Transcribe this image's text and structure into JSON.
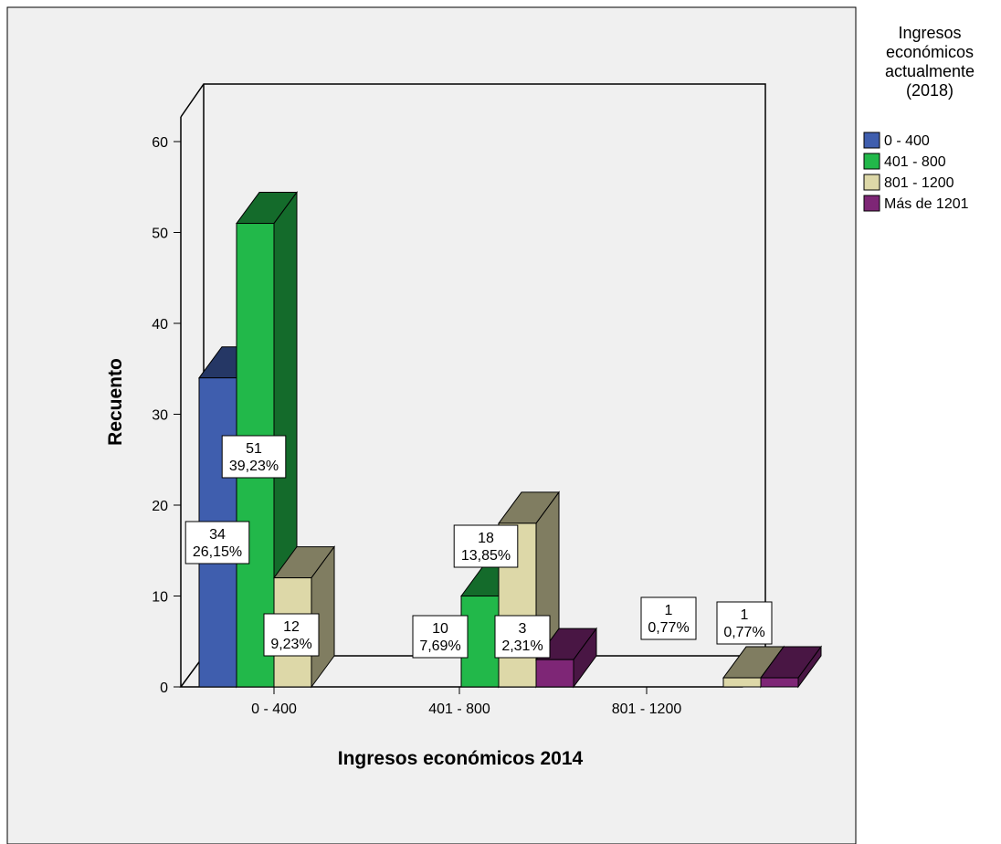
{
  "chart_data": {
    "type": "bar",
    "title": "",
    "xlabel": "Ingresos económicos 2014",
    "ylabel": "Recuento",
    "ylim": [
      0,
      60
    ],
    "yticks": [
      0,
      10,
      20,
      30,
      40,
      50,
      60
    ],
    "categories": [
      "0 - 400",
      "401 - 800",
      "801 - 1200"
    ],
    "legend": {
      "title": [
        "Ingresos",
        "económicos",
        "actualmente",
        "(2018)"
      ],
      "position": "right"
    },
    "series": [
      {
        "name": "0 - 400",
        "color": "#3f5eae",
        "values": [
          34,
          null,
          null
        ],
        "labels": [
          [
            "34",
            "26,15%"
          ],
          null,
          null
        ]
      },
      {
        "name": "401 - 800",
        "color": "#22b84a",
        "values": [
          51,
          10,
          null
        ],
        "labels": [
          [
            "51",
            "39,23%"
          ],
          [
            "10",
            "7,69%"
          ],
          null
        ]
      },
      {
        "name": "801 - 1200",
        "color": "#ddd8a8",
        "values": [
          12,
          18,
          1
        ],
        "labels": [
          [
            "12",
            "9,23%"
          ],
          [
            "18",
            "13,85%"
          ],
          [
            "1",
            "0,77%"
          ]
        ]
      },
      {
        "name": "Más de 1201",
        "color": "#7e2676",
        "values": [
          null,
          3,
          1
        ],
        "labels": [
          null,
          [
            "3",
            "2,31%"
          ],
          [
            "1",
            "0,77%"
          ]
        ]
      }
    ]
  }
}
